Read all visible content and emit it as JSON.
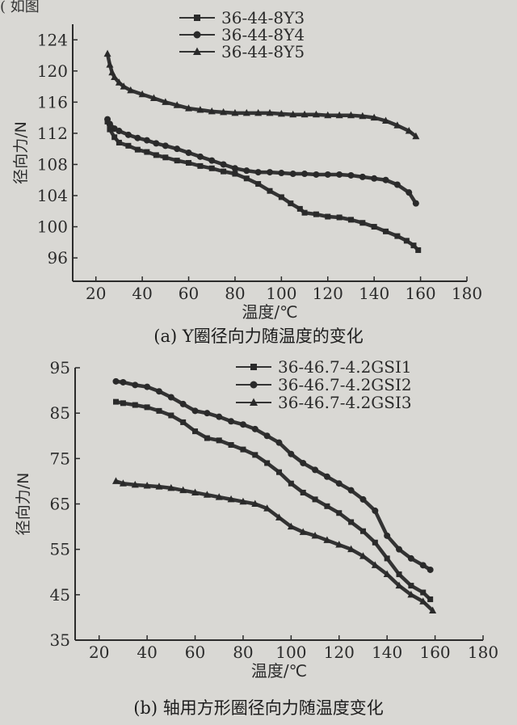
{
  "corner_text": "( 如图",
  "chart_data": [
    {
      "type": "line",
      "title": "(a)  Y圈径向力随温度的变化",
      "xlabel": "温度/℃",
      "ylabel": "径向力/N",
      "xlim": [
        10,
        180
      ],
      "ylim": [
        93,
        126
      ],
      "xticks": [
        20,
        40,
        60,
        80,
        100,
        120,
        140,
        160,
        180
      ],
      "yticks": [
        96,
        100,
        104,
        108,
        112,
        116,
        120,
        124
      ],
      "grid": false,
      "legend_position": "top-center",
      "series": [
        {
          "name": "36-44-8Y3",
          "marker": "square",
          "x": [
            25,
            26,
            28,
            30,
            34,
            38,
            42,
            46,
            50,
            55,
            60,
            65,
            70,
            75,
            80,
            85,
            90,
            95,
            100,
            104,
            108,
            110,
            115,
            120,
            125,
            130,
            135,
            140,
            145,
            150,
            154,
            157,
            159
          ],
          "y": [
            113.5,
            112.5,
            111.5,
            110.8,
            110.4,
            109.9,
            109.6,
            109.2,
            108.9,
            108.5,
            108.2,
            107.8,
            107.5,
            107.1,
            106.8,
            106.2,
            105.5,
            104.6,
            103.8,
            103.0,
            102.3,
            101.8,
            101.6,
            101.3,
            101.2,
            100.9,
            100.5,
            100.0,
            99.4,
            98.8,
            98.2,
            97.6,
            97.0
          ]
        },
        {
          "name": "36-44-8Y4",
          "marker": "circle",
          "x": [
            25,
            26,
            28,
            30,
            34,
            38,
            42,
            46,
            50,
            55,
            60,
            65,
            70,
            75,
            80,
            85,
            90,
            95,
            100,
            105,
            110,
            115,
            120,
            125,
            130,
            135,
            140,
            145,
            150,
            155,
            158
          ],
          "y": [
            113.8,
            113.2,
            112.6,
            112.3,
            111.8,
            111.4,
            111.1,
            110.7,
            110.4,
            110.0,
            109.5,
            109.0,
            108.5,
            108.0,
            107.5,
            107.2,
            107.0,
            107.0,
            106.9,
            106.8,
            106.8,
            106.7,
            106.7,
            106.7,
            106.6,
            106.4,
            106.2,
            106.0,
            105.4,
            104.4,
            103.0
          ]
        },
        {
          "name": "36-44-8Y5",
          "marker": "triangle",
          "x": [
            25,
            26,
            27,
            28,
            30,
            32,
            35,
            40,
            45,
            50,
            55,
            60,
            65,
            70,
            75,
            80,
            85,
            90,
            95,
            100,
            105,
            110,
            115,
            120,
            125,
            130,
            135,
            140,
            145,
            150,
            155,
            158
          ],
          "y": [
            122.2,
            120.8,
            119.8,
            119.2,
            118.5,
            118.0,
            117.5,
            117.0,
            116.5,
            116.0,
            115.6,
            115.2,
            115.0,
            114.8,
            114.7,
            114.6,
            114.6,
            114.6,
            114.6,
            114.5,
            114.4,
            114.4,
            114.4,
            114.3,
            114.3,
            114.3,
            114.2,
            114.0,
            113.6,
            113.0,
            112.3,
            111.6
          ]
        }
      ]
    },
    {
      "type": "line",
      "title": "(b)  轴用方形圈径向力随温度变化",
      "xlabel": "温度/℃",
      "ylabel": "径向力/N",
      "xlim": [
        10,
        180
      ],
      "ylim": [
        35,
        95
      ],
      "xticks": [
        20,
        40,
        60,
        80,
        100,
        120,
        140,
        160,
        180
      ],
      "yticks": [
        35,
        45,
        55,
        65,
        75,
        85,
        95
      ],
      "grid": false,
      "legend_position": "top-right",
      "series": [
        {
          "name": "36-46.7-4.2GSI1",
          "marker": "square",
          "x": [
            27,
            30,
            35,
            40,
            45,
            50,
            55,
            60,
            65,
            70,
            75,
            80,
            85,
            90,
            95,
            100,
            105,
            110,
            115,
            120,
            125,
            130,
            135,
            140,
            145,
            150,
            155,
            158
          ],
          "y": [
            87.5,
            87.2,
            86.8,
            86.3,
            85.5,
            84.5,
            83.0,
            81.0,
            79.5,
            79.0,
            78.0,
            77.0,
            75.8,
            74.0,
            72.0,
            69.5,
            67.5,
            66.0,
            64.5,
            63.0,
            61.0,
            59.0,
            56.5,
            53.0,
            49.5,
            47.0,
            45.5,
            44.0
          ]
        },
        {
          "name": "36-46.7-4.2GSI2",
          "marker": "circle",
          "x": [
            27,
            30,
            35,
            40,
            45,
            50,
            55,
            60,
            65,
            70,
            75,
            80,
            85,
            90,
            95,
            100,
            105,
            110,
            115,
            120,
            125,
            130,
            135,
            140,
            145,
            150,
            155,
            158
          ],
          "y": [
            92.0,
            91.8,
            91.2,
            90.8,
            89.8,
            88.5,
            87.0,
            85.5,
            85.0,
            84.2,
            83.2,
            82.5,
            81.5,
            80.0,
            78.5,
            76.0,
            74.0,
            72.5,
            71.0,
            69.5,
            68.0,
            66.0,
            63.5,
            58.0,
            55.0,
            53.0,
            51.5,
            50.5
          ]
        },
        {
          "name": "36-46.7-4.2GSI3",
          "marker": "triangle",
          "x": [
            27,
            30,
            35,
            40,
            45,
            50,
            55,
            60,
            65,
            70,
            75,
            80,
            85,
            90,
            95,
            100,
            105,
            110,
            115,
            120,
            125,
            130,
            135,
            140,
            145,
            150,
            155,
            159
          ],
          "y": [
            70.0,
            69.5,
            69.2,
            69.0,
            68.8,
            68.5,
            68.0,
            67.5,
            67.0,
            66.5,
            66.0,
            65.5,
            65.0,
            64.0,
            62.0,
            60.0,
            58.8,
            58.0,
            57.0,
            56.0,
            55.0,
            53.5,
            51.5,
            49.5,
            47.0,
            45.0,
            43.5,
            41.5
          ]
        }
      ]
    }
  ]
}
